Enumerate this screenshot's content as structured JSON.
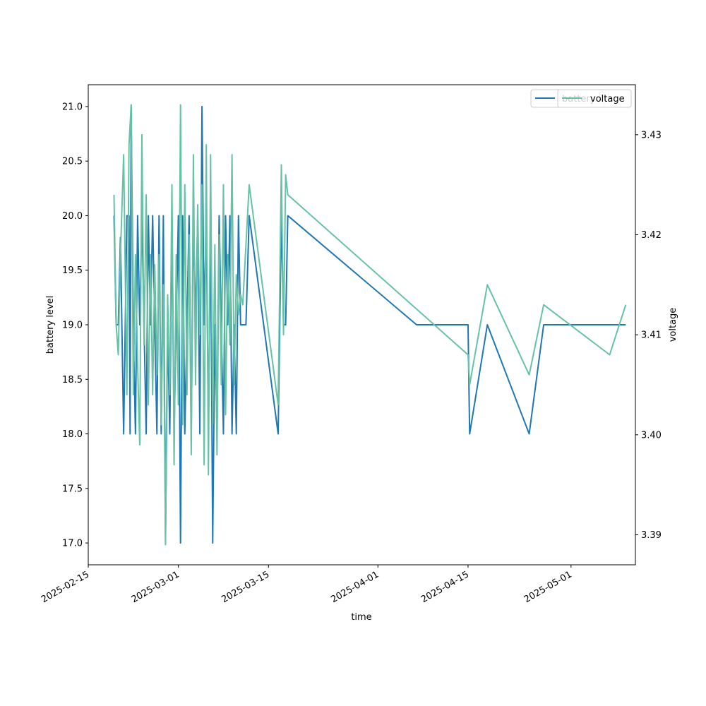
{
  "chart_data": {
    "type": "line",
    "xlabel": "time",
    "ylabel_left": "battery level",
    "ylabel_right": "voltage",
    "x_axis": {
      "kind": "date",
      "range": [
        "2025-02-15",
        "2025-05-11"
      ],
      "ticks": [
        "2025-02-15",
        "2025-03-01",
        "2025-03-15",
        "2025-04-01",
        "2025-04-15",
        "2025-05-01"
      ]
    },
    "y_left": {
      "range": [
        16.8,
        21.2
      ],
      "ticks": [
        "17.0",
        "17.5",
        "18.0",
        "18.5",
        "19.0",
        "19.5",
        "20.0",
        "20.5",
        "21.0"
      ]
    },
    "y_right": {
      "range": [
        3.387,
        3.435
      ],
      "ticks": [
        "3.39",
        "3.40",
        "3.41",
        "3.42",
        "3.43"
      ]
    },
    "legend": {
      "placement": "top-right",
      "entries": [
        "battery",
        "voltage"
      ]
    },
    "grid": false,
    "series": [
      {
        "name": "battery",
        "axis": "left",
        "color": "#1f77b4",
        "points": [
          [
            "2025-02-19T00:00",
            20
          ],
          [
            "2025-02-19T08:00",
            19
          ],
          [
            "2025-02-19T16:00",
            19
          ],
          [
            "2025-02-20T00:00",
            19.8
          ],
          [
            "2025-02-20T12:00",
            18
          ],
          [
            "2025-02-21T00:00",
            20
          ],
          [
            "2025-02-21T08:00",
            20
          ],
          [
            "2025-02-21T12:00",
            18
          ],
          [
            "2025-02-21T16:00",
            21
          ],
          [
            "2025-02-22T00:00",
            19
          ],
          [
            "2025-02-22T08:00",
            18
          ],
          [
            "2025-02-22T16:00",
            20
          ],
          [
            "2025-02-23T00:00",
            19
          ],
          [
            "2025-02-23T08:00",
            20
          ],
          [
            "2025-02-23T16:00",
            19
          ],
          [
            "2025-02-24T00:00",
            18
          ],
          [
            "2025-02-24T08:00",
            20
          ],
          [
            "2025-02-24T16:00",
            19
          ],
          [
            "2025-02-25T00:00",
            20
          ],
          [
            "2025-02-25T08:00",
            19
          ],
          [
            "2025-02-25T16:00",
            18
          ],
          [
            "2025-02-26T00:00",
            20
          ],
          [
            "2025-02-26T08:00",
            18
          ],
          [
            "2025-02-26T16:00",
            20
          ],
          [
            "2025-02-27T00:00",
            17
          ],
          [
            "2025-02-27T08:00",
            19
          ],
          [
            "2025-02-27T16:00",
            18
          ],
          [
            "2025-02-28T00:00",
            20
          ],
          [
            "2025-02-28T08:00",
            18
          ],
          [
            "2025-02-28T16:00",
            19
          ],
          [
            "2025-03-01T00:00",
            20
          ],
          [
            "2025-03-01T08:00",
            17
          ],
          [
            "2025-03-01T16:00",
            20
          ],
          [
            "2025-03-02T00:00",
            18
          ],
          [
            "2025-03-02T08:00",
            19
          ],
          [
            "2025-03-02T16:00",
            20
          ],
          [
            "2025-03-03T00:00",
            18
          ],
          [
            "2025-03-03T08:00",
            20
          ],
          [
            "2025-03-03T16:00",
            19
          ],
          [
            "2025-03-04T00:00",
            20
          ],
          [
            "2025-03-04T08:00",
            18
          ],
          [
            "2025-03-04T16:00",
            21
          ],
          [
            "2025-03-05T00:00",
            19
          ],
          [
            "2025-03-05T08:00",
            20
          ],
          [
            "2025-03-05T16:00",
            18
          ],
          [
            "2025-03-06T00:00",
            20
          ],
          [
            "2025-03-06T08:00",
            17
          ],
          [
            "2025-03-06T16:00",
            19
          ],
          [
            "2025-03-07T00:00",
            18
          ],
          [
            "2025-03-07T08:00",
            20
          ],
          [
            "2025-03-07T16:00",
            19
          ],
          [
            "2025-03-08T00:00",
            18
          ],
          [
            "2025-03-08T08:00",
            20
          ],
          [
            "2025-03-08T16:00",
            19
          ],
          [
            "2025-03-09T00:00",
            20
          ],
          [
            "2025-03-09T08:00",
            18
          ],
          [
            "2025-03-09T16:00",
            19
          ],
          [
            "2025-03-10T00:00",
            18
          ],
          [
            "2025-03-10T08:00",
            20
          ],
          [
            "2025-03-10T16:00",
            19
          ],
          [
            "2025-03-11T00:00",
            19
          ],
          [
            "2025-03-11T12:00",
            19
          ],
          [
            "2025-03-12T00:00",
            20
          ],
          [
            "2025-03-16T12:00",
            18
          ],
          [
            "2025-03-17T00:00",
            20
          ],
          [
            "2025-03-17T08:00",
            19
          ],
          [
            "2025-03-17T16:00",
            19
          ],
          [
            "2025-03-18T00:00",
            20
          ],
          [
            "2025-04-07T00:00",
            19
          ],
          [
            "2025-04-15T00:00",
            19
          ],
          [
            "2025-04-15T06:00",
            18
          ],
          [
            "2025-04-18T00:00",
            19
          ],
          [
            "2025-04-24T12:00",
            18
          ],
          [
            "2025-04-26T18:00",
            19
          ],
          [
            "2025-05-09T12:00",
            19
          ]
        ]
      },
      {
        "name": "voltage",
        "axis": "right",
        "color": "#66c2a5",
        "points": [
          [
            "2025-02-19T00:00",
            3.424
          ],
          [
            "2025-02-19T08:00",
            3.411
          ],
          [
            "2025-02-19T16:00",
            3.408
          ],
          [
            "2025-02-20T00:00",
            3.418
          ],
          [
            "2025-02-20T12:00",
            3.428
          ],
          [
            "2025-02-21T00:00",
            3.404
          ],
          [
            "2025-02-21T08:00",
            3.429
          ],
          [
            "2025-02-21T16:00",
            3.433
          ],
          [
            "2025-02-22T00:00",
            3.404
          ],
          [
            "2025-02-22T08:00",
            3.418
          ],
          [
            "2025-02-22T16:00",
            3.407
          ],
          [
            "2025-02-23T00:00",
            3.399
          ],
          [
            "2025-02-23T08:00",
            3.43
          ],
          [
            "2025-02-23T16:00",
            3.409
          ],
          [
            "2025-02-24T00:00",
            3.424
          ],
          [
            "2025-02-24T08:00",
            3.403
          ],
          [
            "2025-02-24T16:00",
            3.418
          ],
          [
            "2025-02-25T00:00",
            3.404
          ],
          [
            "2025-02-25T08:00",
            3.417
          ],
          [
            "2025-02-25T16:00",
            3.406
          ],
          [
            "2025-02-26T00:00",
            3.418
          ],
          [
            "2025-02-26T08:00",
            3.401
          ],
          [
            "2025-02-26T16:00",
            3.415
          ],
          [
            "2025-02-27T00:00",
            3.389
          ],
          [
            "2025-02-27T08:00",
            3.414
          ],
          [
            "2025-02-27T16:00",
            3.404
          ],
          [
            "2025-02-28T00:00",
            3.425
          ],
          [
            "2025-02-28T08:00",
            3.397
          ],
          [
            "2025-02-28T16:00",
            3.418
          ],
          [
            "2025-03-01T00:00",
            3.403
          ],
          [
            "2025-03-01T08:00",
            3.433
          ],
          [
            "2025-03-01T16:00",
            3.401
          ],
          [
            "2025-03-02T00:00",
            3.425
          ],
          [
            "2025-03-02T08:00",
            3.404
          ],
          [
            "2025-03-02T16:00",
            3.42
          ],
          [
            "2025-03-03T00:00",
            3.398
          ],
          [
            "2025-03-03T08:00",
            3.428
          ],
          [
            "2025-03-03T16:00",
            3.405
          ],
          [
            "2025-03-04T00:00",
            3.423
          ],
          [
            "2025-03-04T08:00",
            3.41
          ],
          [
            "2025-03-04T16:00",
            3.425
          ],
          [
            "2025-03-05T00:00",
            3.397
          ],
          [
            "2025-03-05T08:00",
            3.429
          ],
          [
            "2025-03-05T16:00",
            3.396
          ],
          [
            "2025-03-06T00:00",
            3.428
          ],
          [
            "2025-03-06T08:00",
            3.401
          ],
          [
            "2025-03-06T16:00",
            3.419
          ],
          [
            "2025-03-07T00:00",
            3.398
          ],
          [
            "2025-03-07T08:00",
            3.42
          ],
          [
            "2025-03-07T16:00",
            3.405
          ],
          [
            "2025-03-08T00:00",
            3.425
          ],
          [
            "2025-03-08T08:00",
            3.402
          ],
          [
            "2025-03-08T16:00",
            3.418
          ],
          [
            "2025-03-09T00:00",
            3.409
          ],
          [
            "2025-03-09T08:00",
            3.428
          ],
          [
            "2025-03-09T16:00",
            3.405
          ],
          [
            "2025-03-10T00:00",
            3.416
          ],
          [
            "2025-03-10T08:00",
            3.412
          ],
          [
            "2025-03-10T16:00",
            3.414
          ],
          [
            "2025-03-11T00:00",
            3.413
          ],
          [
            "2025-03-12T00:00",
            3.425
          ],
          [
            "2025-03-16T12:00",
            3.403
          ],
          [
            "2025-03-17T00:00",
            3.427
          ],
          [
            "2025-03-17T08:00",
            3.41
          ],
          [
            "2025-03-17T16:00",
            3.426
          ],
          [
            "2025-03-18T00:00",
            3.424
          ],
          [
            "2025-04-15T00:00",
            3.408
          ],
          [
            "2025-04-15T06:00",
            3.405
          ],
          [
            "2025-04-18T00:00",
            3.415
          ],
          [
            "2025-04-24T12:00",
            3.406
          ],
          [
            "2025-04-26T18:00",
            3.413
          ],
          [
            "2025-05-07T00:00",
            3.408
          ],
          [
            "2025-05-09T12:00",
            3.413
          ]
        ]
      }
    ]
  }
}
